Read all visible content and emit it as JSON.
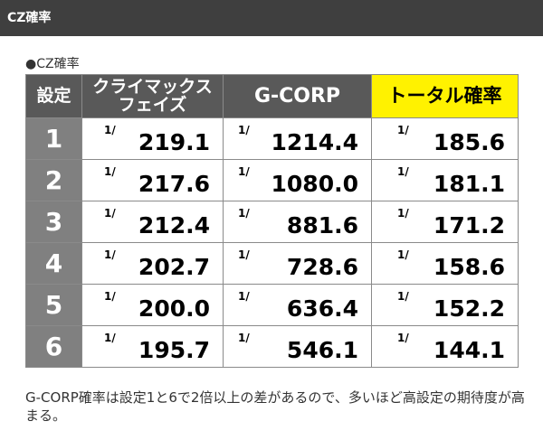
{
  "header": {
    "title": "CZ確率"
  },
  "caption": "●CZ確率",
  "table": {
    "headers": {
      "setting": "設定",
      "climax_line1": "クライマックス",
      "climax_line2": "フェイズ",
      "gcorp": "G-CORP",
      "total": "トータル確率"
    },
    "fraction_prefix": "1/",
    "rows": [
      {
        "setting": "1",
        "climax": "219.1",
        "gcorp": "1214.4",
        "total": "185.6"
      },
      {
        "setting": "2",
        "climax": "217.6",
        "gcorp": "1080.0",
        "total": "181.1"
      },
      {
        "setting": "3",
        "climax": "212.4",
        "gcorp": "881.6",
        "total": "171.2"
      },
      {
        "setting": "4",
        "climax": "202.7",
        "gcorp": "728.6",
        "total": "158.6"
      },
      {
        "setting": "5",
        "climax": "200.0",
        "gcorp": "636.4",
        "total": "152.2"
      },
      {
        "setting": "6",
        "climax": "195.7",
        "gcorp": "546.1",
        "total": "144.1"
      }
    ]
  },
  "note": "G-CORP確率は設定1と6で2倍以上の差があるので、多いほど高設定の期待度が高まる。",
  "colors": {
    "header_bg": "#3f3f3f",
    "table_header_bg": "#595959",
    "total_header_bg": "#fff200",
    "setting_cell_bg": "#808080"
  }
}
